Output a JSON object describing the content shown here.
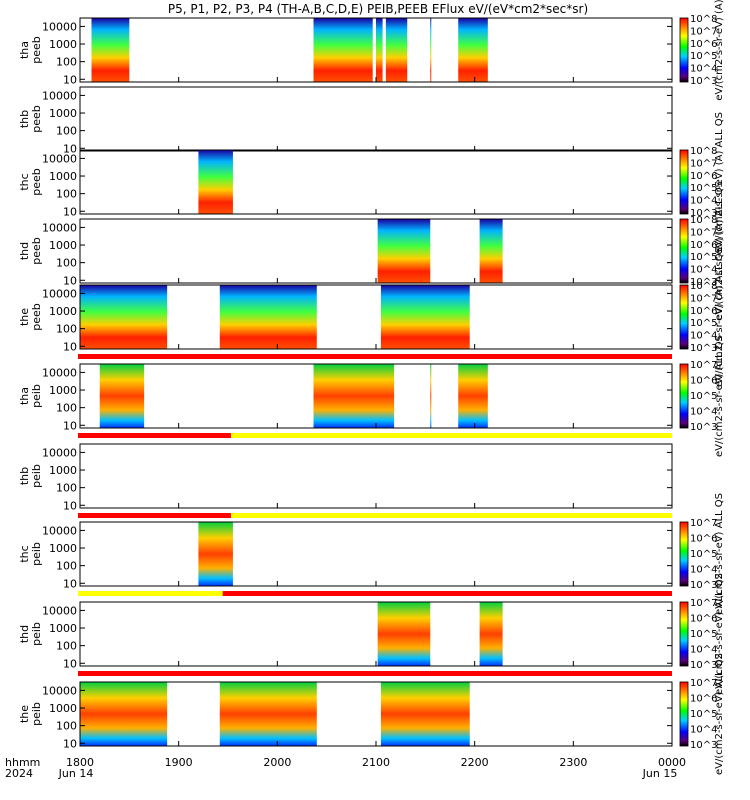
{
  "chart_data": {
    "type": "heatmap",
    "title": "P5, P1, P2, P3, P4 (TH-A,B,C,D,E) PEIB,PEEB EFlux eV/(eV*cm2*sec*sr)",
    "x_axis": {
      "unit_label": "hhmm",
      "year_label": "2024",
      "start_date_label": "Jun 14",
      "end_date_label": "Jun 15",
      "ticks": [
        "1800",
        "1900",
        "2000",
        "2100",
        "2200",
        "2300",
        "0000"
      ]
    },
    "y_ticks": [
      "10",
      "100",
      "1000",
      "10000"
    ],
    "panels": [
      {
        "probe": "tha",
        "product": "peeb",
        "ylim": [
          7,
          30000
        ],
        "segments": [
          [
            "1807",
            "1830"
          ],
          [
            "2022",
            "2058"
          ],
          [
            "2060",
            "2064"
          ],
          [
            "2066",
            "2079"
          ],
          [
            "2093",
            "2119"
          ],
          [
            "2150",
            "2168"
          ]
        ],
        "colorbar": {
          "ticks": [
            "10^3",
            "10^4",
            "10^5",
            "10^6",
            "10^7",
            "10^8"
          ],
          "label": "eV/(cm2-s-sr-eV) (A)"
        }
      },
      {
        "probe": "thb",
        "product": "peeb",
        "ylim": [
          7,
          30000
        ],
        "segments": [],
        "colorbar": null
      },
      {
        "probe": "thc",
        "product": "peeb",
        "ylim": [
          7,
          30000
        ],
        "segments": [
          [
            "1872",
            "1893"
          ]
        ],
        "colorbar": {
          "ticks": [
            "10^3",
            "10^4",
            "10^5",
            "10^6",
            "10^7",
            "10^8"
          ],
          "label": "eV/(cm2-s-sr-eV) (A) ALL QS"
        }
      },
      {
        "probe": "thd",
        "product": "peeb",
        "ylim": [
          7,
          30000
        ],
        "segments": [
          [
            "2061",
            "2093"
          ],
          [
            "2163",
            "2217"
          ]
        ],
        "colorbar": {
          "ticks": [
            "10^3",
            "10^4",
            "10^5",
            "10^6",
            "10^7",
            "10^8"
          ],
          "label": "eV/(cm2-s-sr-eV) (A) ALL QS"
        }
      },
      {
        "probe": "the",
        "product": "peeb",
        "ylim": [
          7,
          30000
        ],
        "segments": [
          [
            "1800",
            "1853"
          ],
          [
            "1925",
            "1984"
          ],
          [
            "2063",
            "2157"
          ]
        ],
        "colorbar": {
          "ticks": [
            "10^3",
            "10^4",
            "10^5",
            "10^6",
            "10^7",
            "10^8"
          ],
          "label": "eV/(cm2-s-sr-eV) (A) ALL QS"
        }
      },
      {
        "probe": "tha",
        "product": "peib",
        "ylim": [
          7,
          30000
        ],
        "segments": [
          [
            "1812",
            "1839"
          ],
          [
            "2022",
            "2071"
          ],
          [
            "2093",
            "2119"
          ],
          [
            "2150",
            "2168"
          ]
        ],
        "colorbar": {
          "ticks": [
            "10^3",
            "10^4",
            "10^5",
            "10^6",
            "10^7"
          ],
          "label": "eV/(cm2-s-sr-eV) ALL QS"
        }
      },
      {
        "probe": "thb",
        "product": "peib",
        "ylim": [
          7,
          30000
        ],
        "segments": [],
        "colorbar": null
      },
      {
        "probe": "thc",
        "product": "peib",
        "ylim": [
          7,
          30000
        ],
        "segments": [
          [
            "1872",
            "1893"
          ]
        ],
        "colorbar": {
          "ticks": [
            "10^3",
            "10^4",
            "10^5",
            "10^6",
            "10^7"
          ],
          "label": "eV/(cm2-s-sr-eV) ALL QS"
        }
      },
      {
        "probe": "thd",
        "product": "peib",
        "ylim": [
          7,
          30000
        ],
        "segments": [
          [
            "2061",
            "2093"
          ],
          [
            "2163",
            "2217"
          ]
        ],
        "colorbar": {
          "ticks": [
            "10^3",
            "10^4",
            "10^5",
            "10^6",
            "10^7"
          ],
          "label": "eV/(cm2-s-sr-eV) ALL QS"
        }
      },
      {
        "probe": "the",
        "product": "peib",
        "ylim": [
          7,
          30000
        ],
        "segments": [
          [
            "1800",
            "1853"
          ],
          [
            "1925",
            "1984"
          ],
          [
            "2063",
            "2157"
          ]
        ],
        "colorbar": {
          "ticks": [
            "10^3",
            "10^4",
            "10^5",
            "10^6",
            "10^7"
          ],
          "label": "eV/(cm2-s-sr-eV) ALL QS"
        }
      }
    ],
    "mode_bars": [
      {
        "after_panel": 5,
        "segments": [
          {
            "from": "1800",
            "to": "2400",
            "color": "#ff0000"
          }
        ]
      },
      {
        "after_panel": 6,
        "segments": [
          {
            "from": "1800",
            "to": "1893",
            "color": "#ff0000"
          },
          {
            "from": "1893",
            "to": "2400",
            "color": "#ffff00"
          }
        ]
      },
      {
        "after_panel": 7,
        "segments": [
          {
            "from": "1800",
            "to": "1893",
            "color": "#ff0000"
          },
          {
            "from": "1893",
            "to": "2400",
            "color": "#ffff00"
          }
        ]
      },
      {
        "after_panel": 8,
        "segments": [
          {
            "from": "1800",
            "to": "1888",
            "color": "#ffff00"
          },
          {
            "from": "1888",
            "to": "2400",
            "color": "#ff0000"
          }
        ]
      },
      {
        "after_panel": 9,
        "segments": [
          {
            "from": "1800",
            "to": "2400",
            "color": "#ff0000"
          }
        ]
      }
    ]
  }
}
